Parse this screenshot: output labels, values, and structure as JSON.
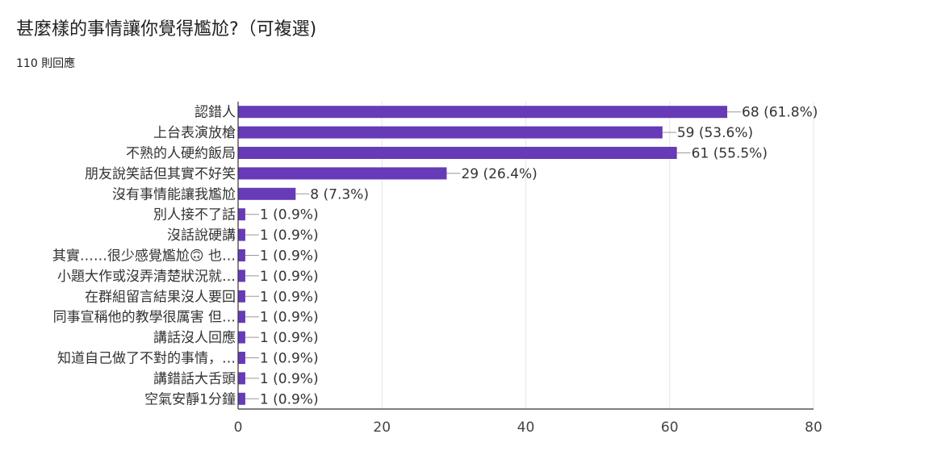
{
  "question": {
    "title": "甚麼樣的事情讓你覺得尷尬?（可複選)",
    "responses": "110 則回應"
  },
  "colors": {
    "bar": "#673ab7",
    "grid": "#e6e6e6",
    "axis": "#333333",
    "text": "#333333",
    "leader": "#999999"
  },
  "chart_data": {
    "type": "bar",
    "orientation": "horizontal",
    "title": "",
    "xlabel": "",
    "ylabel": "",
    "xlim": [
      0,
      80
    ],
    "ticks": [
      0,
      20,
      40,
      60,
      80
    ],
    "grid": true,
    "legend": "none",
    "categories": [
      "認錯人",
      "上台表演放槍",
      "不熟的人硬約飯局",
      "朋友說笑話但其實不好笑",
      "沒有事情能讓我尷尬",
      "別人接不了話",
      "沒話說硬講",
      "其實……很少感覺尷尬🙃 也…",
      "小題大作或沒弄清楚狀況就…",
      "在群組留言結果沒人要回",
      "同事宣稱他的教學很厲害 但…",
      "講話沒人回應",
      "知道自己做了不對的事情，…",
      "講錯話大舌頭",
      "空氣安靜1分鐘"
    ],
    "values": [
      68,
      59,
      61,
      29,
      8,
      1,
      1,
      1,
      1,
      1,
      1,
      1,
      1,
      1,
      1
    ],
    "data_labels": [
      "68 (61.8%)",
      "59 (53.6%)",
      "61 (55.5%)",
      "29 (26.4%)",
      "8 (7.3%)",
      "1 (0.9%)",
      "1 (0.9%)",
      "1 (0.9%)",
      "1 (0.9%)",
      "1 (0.9%)",
      "1 (0.9%)",
      "1 (0.9%)",
      "1 (0.9%)",
      "1 (0.9%)",
      "1 (0.9%)"
    ]
  }
}
